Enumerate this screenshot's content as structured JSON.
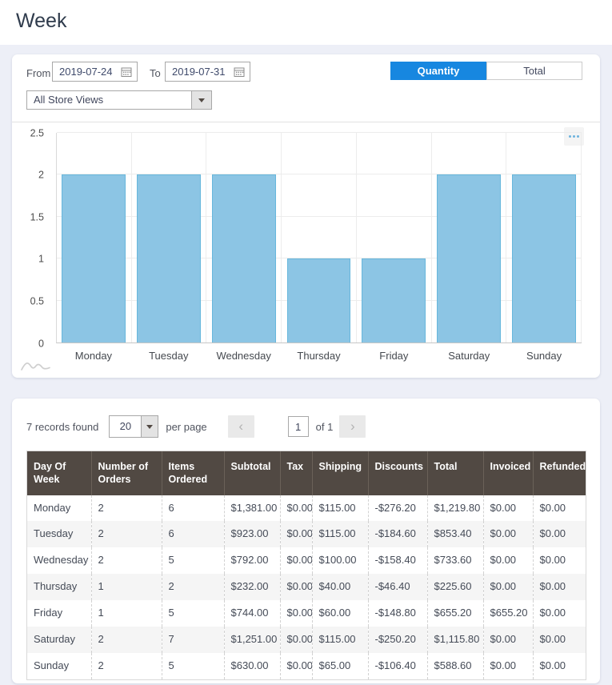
{
  "page": {
    "title": "Week"
  },
  "filters": {
    "from_label": "From",
    "from_value": "2019-07-24",
    "to_label": "To",
    "to_value": "2019-07-31",
    "store_view_selected": "All Store Views",
    "toggle": {
      "quantity_label": "Quantity",
      "total_label": "Total",
      "active": "Quantity"
    }
  },
  "chart_data": {
    "type": "bar",
    "categories": [
      "Monday",
      "Tuesday",
      "Wednesday",
      "Thursday",
      "Friday",
      "Saturday",
      "Sunday"
    ],
    "values": [
      2,
      2,
      2,
      1,
      1,
      2,
      2
    ],
    "title": "",
    "xlabel": "",
    "ylabel": "",
    "ylim": [
      0,
      2.5
    ],
    "yticks": [
      0,
      0.5,
      1,
      1.5,
      2,
      2.5
    ],
    "grid": true,
    "legend": false,
    "bar_fill": "#8cc5e4",
    "bar_stroke": "#67b7dc"
  },
  "pagination": {
    "records_text": "7 records found",
    "per_page_value": "20",
    "per_page_suffix": "per page",
    "prev_icon": "‹",
    "next_icon": "›",
    "page_value": "1",
    "of_text": "of 1"
  },
  "table": {
    "columns": [
      "Day Of Week",
      "Number of Orders",
      "Items Ordered",
      "Subtotal",
      "Tax",
      "Shipping",
      "Discounts",
      "Total",
      "Invoiced",
      "Refunded"
    ],
    "rows": [
      [
        "Monday",
        "2",
        "6",
        "$1,381.00",
        "$0.00",
        "$115.00",
        "-$276.20",
        "$1,219.80",
        "$0.00",
        "$0.00"
      ],
      [
        "Tuesday",
        "2",
        "6",
        "$923.00",
        "$0.00",
        "$115.00",
        "-$184.60",
        "$853.40",
        "$0.00",
        "$0.00"
      ],
      [
        "Wednesday",
        "2",
        "5",
        "$792.00",
        "$0.00",
        "$100.00",
        "-$158.40",
        "$733.60",
        "$0.00",
        "$0.00"
      ],
      [
        "Thursday",
        "1",
        "2",
        "$232.00",
        "$0.00",
        "$40.00",
        "-$46.40",
        "$225.60",
        "$0.00",
        "$0.00"
      ],
      [
        "Friday",
        "1",
        "5",
        "$744.00",
        "$0.00",
        "$60.00",
        "-$148.80",
        "$655.20",
        "$655.20",
        "$0.00"
      ],
      [
        "Saturday",
        "2",
        "7",
        "$1,251.00",
        "$0.00",
        "$115.00",
        "-$250.20",
        "$1,115.80",
        "$0.00",
        "$0.00"
      ],
      [
        "Sunday",
        "2",
        "5",
        "$630.00",
        "$0.00",
        "$65.00",
        "-$106.40",
        "$588.60",
        "$0.00",
        "$0.00"
      ]
    ]
  },
  "colors": {
    "accent_blue": "#1787e0",
    "table_header_bg": "#514943",
    "bar_fill": "#8cc5e4",
    "bar_stroke": "#67b7dc",
    "page_bg": "#edeff7"
  }
}
